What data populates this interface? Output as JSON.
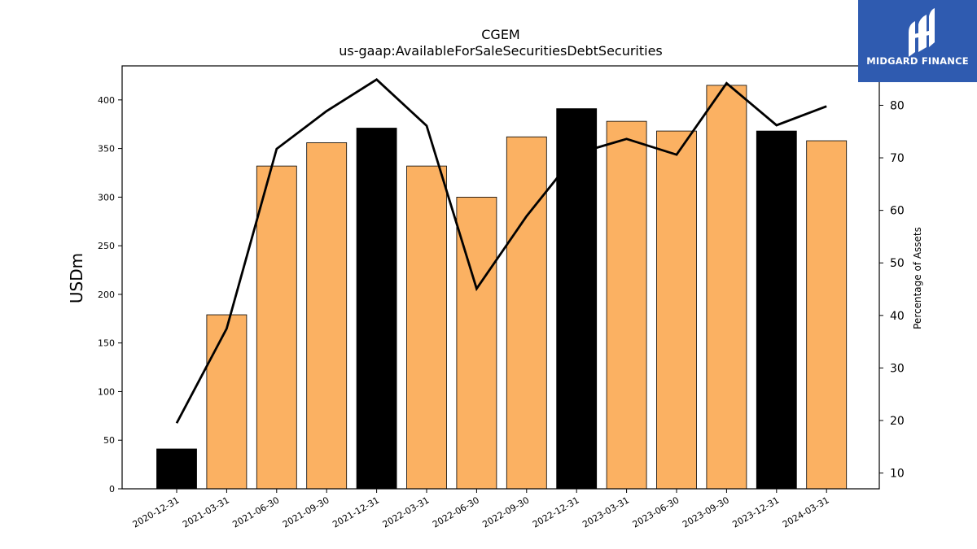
{
  "logo": {
    "text": "MIDGARD FINANCE",
    "background": "#2f5bb0"
  },
  "chart_data": {
    "type": "bar",
    "title": "CGEM",
    "subtitle": "us-gaap:AvailableForSaleSecuritiesDebtSecurities",
    "ylabel": "USDm",
    "y2label": "Percentage of Assets",
    "ylim": [
      0,
      435
    ],
    "y2lim": [
      7.0,
      87.5
    ],
    "yticks": [
      0,
      50,
      100,
      150,
      200,
      250,
      300,
      350,
      400
    ],
    "y2ticks": [
      10,
      20,
      30,
      40,
      50,
      60,
      70,
      80
    ],
    "categories": [
      "2020-12-31",
      "2021-03-31",
      "2021-06-30",
      "2021-09-30",
      "2021-12-31",
      "2022-03-31",
      "2022-06-30",
      "2022-09-30",
      "2022-12-31",
      "2023-03-31",
      "2023-06-30",
      "2023-09-30",
      "2023-12-31",
      "2024-03-31"
    ],
    "series": [
      {
        "kind": "bar",
        "values": [
          41,
          179,
          332,
          356,
          371,
          332,
          300,
          362,
          391,
          378,
          368,
          415,
          368,
          358
        ],
        "colors": [
          "#000000",
          "#fbb162",
          "#fbb162",
          "#fbb162",
          "#000000",
          "#fbb162",
          "#fbb162",
          "#fbb162",
          "#000000",
          "#fbb162",
          "#fbb162",
          "#fbb162",
          "#000000",
          "#fbb162"
        ]
      },
      {
        "kind": "line",
        "axis": "right",
        "color": "#000000",
        "values": [
          19.5,
          37.5,
          71.7,
          78.9,
          84.9,
          76.1,
          45.1,
          58.9,
          70.8,
          73.6,
          70.6,
          84.2,
          76.2,
          79.8
        ]
      }
    ],
    "grid": false,
    "legend": "none"
  }
}
